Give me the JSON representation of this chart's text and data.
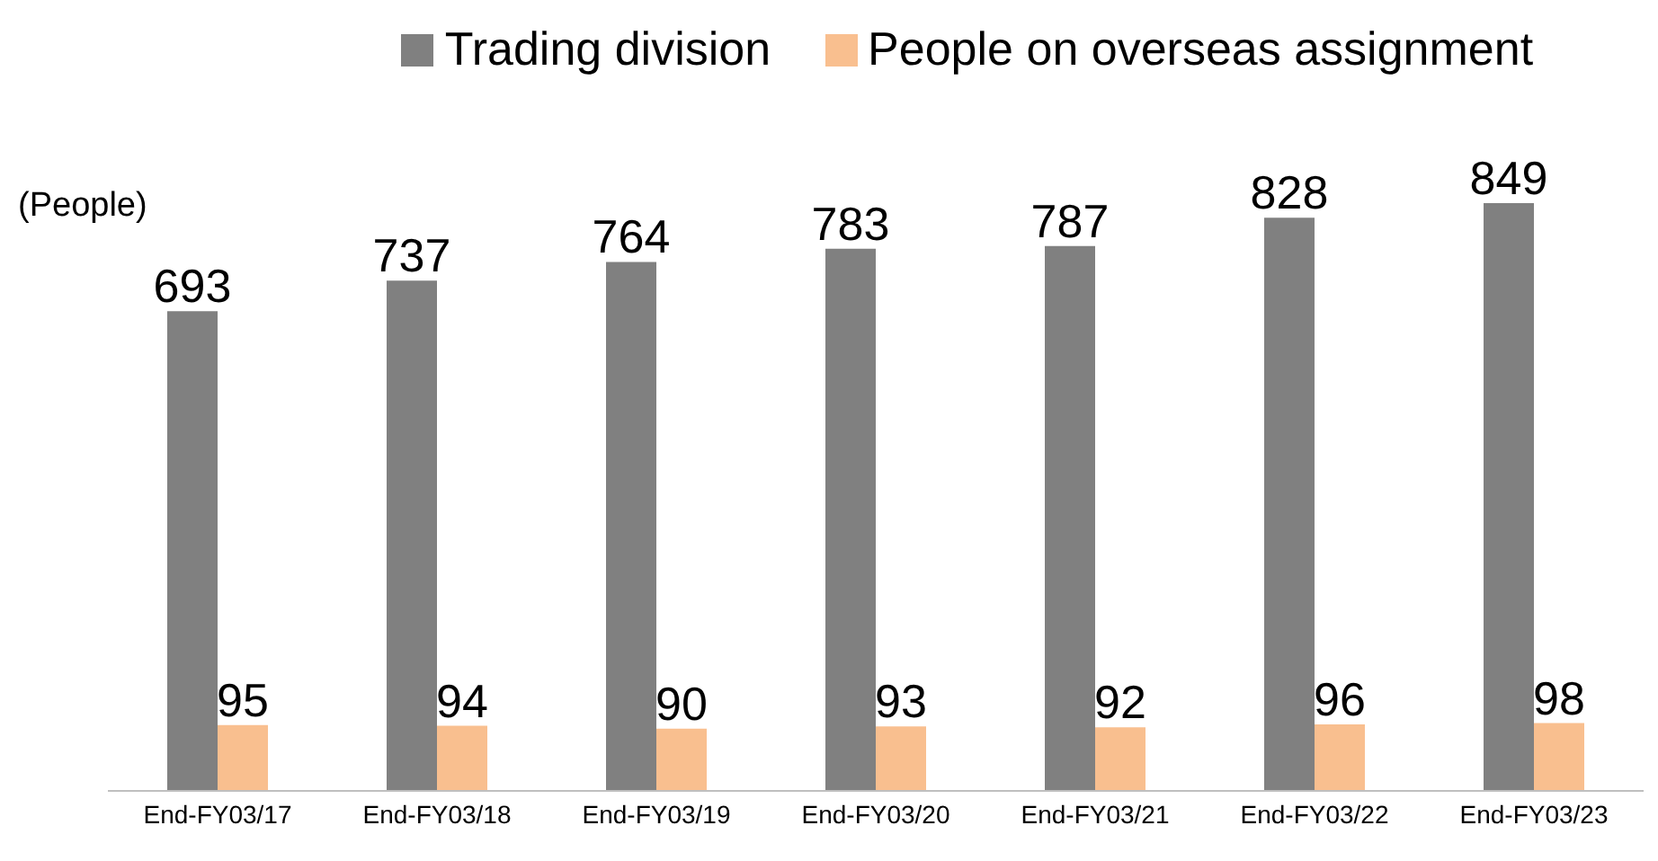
{
  "chart_data": {
    "type": "bar",
    "ylabel": "(People)",
    "categories": [
      "End-FY03/17",
      "End-FY03/18",
      "End-FY03/19",
      "End-FY03/20",
      "End-FY03/21",
      "End-FY03/22",
      "End-FY03/23"
    ],
    "series": [
      {
        "name": "Trading division",
        "color": "#808080",
        "values": [
          693,
          737,
          764,
          783,
          787,
          828,
          849
        ]
      },
      {
        "name": "People on overseas assignment",
        "color": "#f9bf8f",
        "values": [
          95,
          94,
          90,
          93,
          92,
          96,
          98
        ]
      }
    ],
    "tick_labels": "x",
    "data_labels": true,
    "legend": "top",
    "grid": false
  }
}
